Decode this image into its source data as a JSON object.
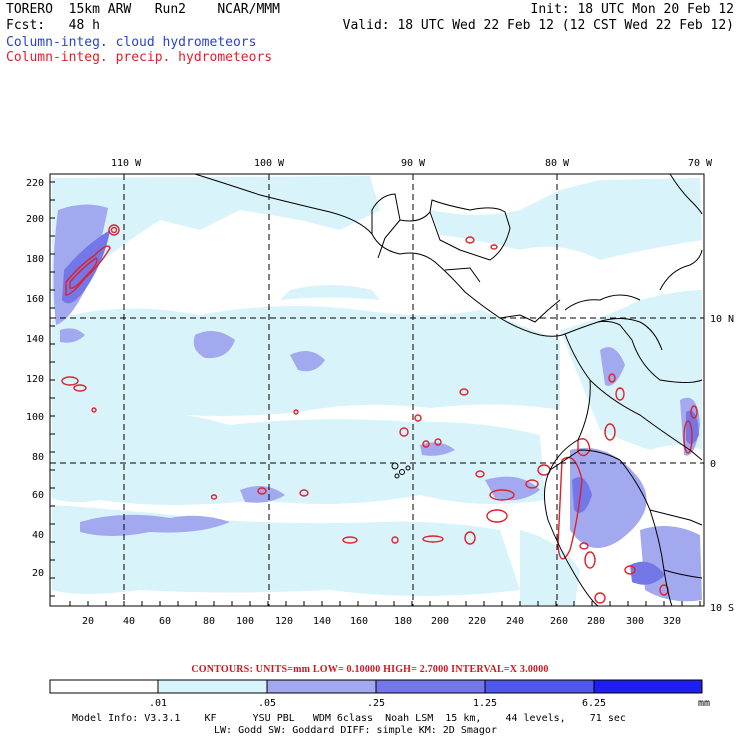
{
  "header": {
    "model": "TORERO  15km ARW   Run2    NCAR/MMM",
    "init": "Init: 18 UTC Mon 20 Feb 12",
    "fcst": "Fcst:   48 h",
    "valid": "Valid: 18 UTC Wed 22 Feb 12 (12 CST Wed 22 Feb 12)",
    "field_cloud": "Column-integ. cloud hydrometeors",
    "field_precip": "Column-integ. precip. hydrometeors"
  },
  "map": {
    "lon_labels": [
      "110 W",
      "100 W",
      "90 W",
      "80 W",
      "70 W"
    ],
    "lat_labels": [
      "10 N",
      "0",
      "10 S"
    ],
    "y_ticks": [
      "220",
      "200",
      "180",
      "160",
      "140",
      "120",
      "100",
      "80",
      "60",
      "40",
      "20"
    ],
    "x_ticks": [
      "20",
      "40",
      "60",
      "80",
      "100",
      "120",
      "140",
      "160",
      "180",
      "200",
      "220",
      "240",
      "260",
      "280",
      "300",
      "320"
    ],
    "colors": {
      "ocean": "#ffffff",
      "light_cloud": "#d9f3fb",
      "medium_cloud": "#a3a9ee",
      "heavy_cloud": "#7377e8",
      "precip_contour": "#e0202a",
      "coast": "#000000",
      "grid": "#000000"
    }
  },
  "contours": "CONTOURS:  UNITS=mm  LOW= 0.10000      HIGH=  2.7000      INTERVAL=X  3.0000",
  "colorbar": {
    "labels": [
      ".01",
      ".05",
      ".25",
      "1.25",
      "6.25"
    ],
    "units": "mm",
    "colors": [
      "#ffffff",
      "#d9f3fb",
      "#a3a9ee",
      "#7377e8",
      "#4f56ec",
      "#1e1ef0"
    ]
  },
  "model_info": {
    "line1": "Model Info: V3.3.1    KF      YSU PBL   WDM 6class  Noah LSM  15 km,    44 levels,    71 sec",
    "line2": "LW: Godd SW: Goddard DIFF: simple KM: 2D Smagor"
  }
}
